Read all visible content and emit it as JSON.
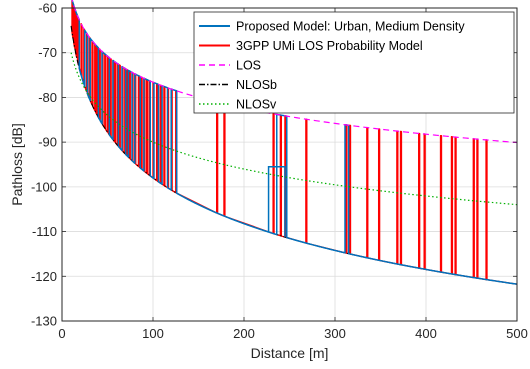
{
  "chart_data": {
    "type": "line",
    "xlabel": "Distance [m]",
    "ylabel": "Pathloss [dB]",
    "xlim": [
      0,
      500
    ],
    "ylim": [
      -130,
      -60
    ],
    "xticks": [
      0,
      100,
      200,
      300,
      400,
      500
    ],
    "yticks": [
      -130,
      -120,
      -110,
      -100,
      -90,
      -80,
      -70,
      -60
    ],
    "xtick_labels": [
      "0",
      "100",
      "200",
      "300",
      "400",
      "500"
    ],
    "ytick_labels": [
      "-130",
      "-120",
      "-110",
      "-100",
      "-90",
      "-80",
      "-70",
      "-60"
    ],
    "grid": true,
    "legend_position": "top-right",
    "x_range": [
      10,
      500
    ],
    "series": [
      {
        "name": "Proposed Model: Urban, Medium Density",
        "color": "#0072BD",
        "style": "solid",
        "switch_points": [
          [
            10,
            "los"
          ],
          [
            19,
            "nlos"
          ],
          [
            25,
            "los"
          ],
          [
            28,
            "nlos"
          ],
          [
            31,
            "los"
          ],
          [
            40,
            "nlos"
          ],
          [
            44,
            "los"
          ],
          [
            52,
            "nlos"
          ],
          [
            56,
            "los"
          ],
          [
            62,
            "nlos"
          ],
          [
            66,
            "los"
          ],
          [
            70,
            "nlos"
          ],
          [
            73,
            "los"
          ],
          [
            77,
            "nlos"
          ],
          [
            80,
            "los"
          ],
          [
            86,
            "nlos"
          ],
          [
            90,
            "los"
          ],
          [
            97,
            "nlos"
          ],
          [
            101,
            "los"
          ],
          [
            106,
            "nlos"
          ],
          [
            110,
            "los"
          ],
          [
            116,
            "nlos"
          ],
          [
            120,
            "los"
          ],
          [
            126,
            "nlos"
          ],
          [
            236,
            "los"
          ],
          [
            247,
            "nlos"
          ],
          [
            311,
            "los"
          ],
          [
            315,
            "nlos"
          ]
        ],
        "step_segment": {
          "x_start": 227,
          "x_end": 245,
          "y": -95.5
        }
      },
      {
        "name": "3GPP UMi LOS Probability Model",
        "color": "#FF0000",
        "style": "solid",
        "spikes": [
          10,
          12,
          14,
          16,
          18,
          21,
          24,
          27,
          30,
          33,
          36,
          38,
          41,
          44,
          47,
          50,
          53,
          56,
          58,
          61,
          63,
          66,
          69,
          71,
          74,
          77,
          80,
          84,
          87,
          90,
          93,
          96,
          100,
          104,
          108,
          112,
          116,
          120,
          125,
          170,
          178,
          232,
          240,
          245,
          268,
          312,
          316,
          335,
          348,
          368,
          372,
          392,
          398,
          416,
          428,
          432,
          452,
          456,
          466
        ]
      },
      {
        "name": "LOS",
        "color": "#FF00FF",
        "style": "dashed",
        "model": {
          "a": -38,
          "b": 19.3
        }
      },
      {
        "name": "NLOSb",
        "color": "#000000",
        "style": "dash-dot",
        "model": {
          "a": -30,
          "b": 34
        }
      },
      {
        "name": "NLOSv",
        "color": "#00B000",
        "style": "dotted",
        "model": {
          "a": -50,
          "b": 20
        }
      }
    ]
  }
}
